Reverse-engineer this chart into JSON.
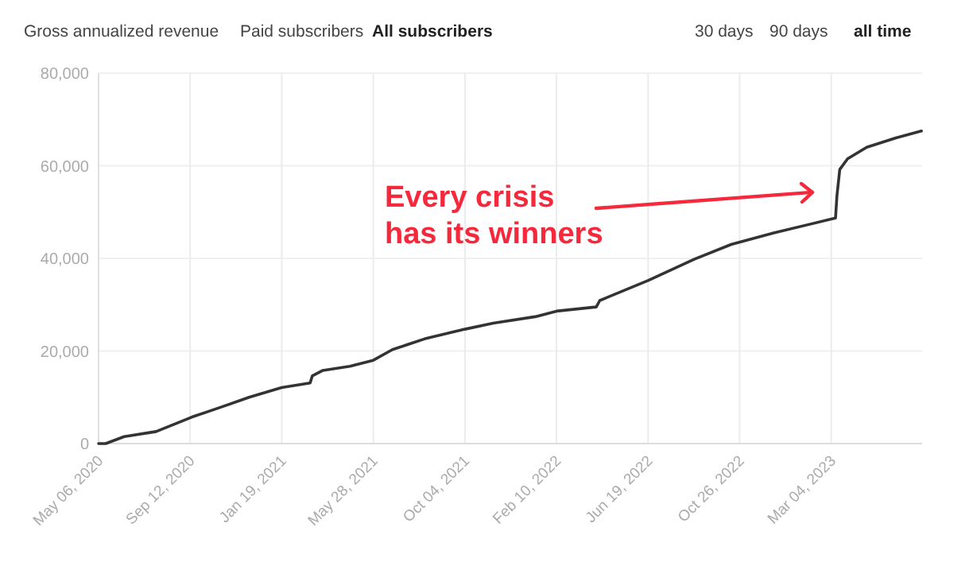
{
  "chart_data": {
    "type": "line",
    "annotations": [
      "Every crisis\nhas its winners",
      "Gross annualized revenue",
      "Paid subscribers",
      "All subscribers",
      "30 days",
      "90 days",
      "all time"
    ],
    "x": [
      "2020-05-06",
      "2020-05-16",
      "2020-06-11",
      "2020-07-26",
      "2020-09-14",
      "2020-10-28",
      "2020-12-04",
      "2021-01-19",
      "2021-02-28",
      "2021-03-03",
      "2021-03-18",
      "2021-04-25",
      "2021-05-28",
      "2021-06-24",
      "2021-08-08",
      "2021-10-04",
      "2021-11-13",
      "2022-01-11",
      "2022-02-10",
      "2022-04-07",
      "2022-04-12",
      "2022-06-19",
      "2022-08-23",
      "2022-10-14",
      "2022-12-13",
      "2023-03-10",
      "2023-03-12",
      "2023-03-16",
      "2023-03-27",
      "2023-04-23",
      "2023-06-03",
      "2023-07-09"
    ],
    "series": [
      {
        "color": "#333333",
        "values": [
          0,
          0,
          1500,
          2600,
          5700,
          8000,
          10000,
          12100,
          13100,
          14600,
          15800,
          16700,
          18000,
          20300,
          22600,
          24700,
          26000,
          27400,
          28600,
          29500,
          30900,
          35200,
          39800,
          43000,
          45500,
          48700,
          53500,
          59200,
          61500,
          64000,
          66000,
          67500
        ]
      }
    ],
    "xlim": [
      "2020-05-06",
      "2023-07-10"
    ],
    "xticks": [
      {
        "value": "2020-05-06",
        "label": "May 06, 2020"
      },
      {
        "value": "2020-09-12",
        "label": "Sep 12, 2020"
      },
      {
        "value": "2021-01-19",
        "label": "Jan 19, 2021"
      },
      {
        "value": "2021-05-28",
        "label": "May 28, 2021"
      },
      {
        "value": "2021-10-04",
        "label": "Oct 04, 2021"
      },
      {
        "value": "2022-02-10",
        "label": "Feb 10, 2022"
      },
      {
        "value": "2022-06-19",
        "label": "Jun 19, 2022"
      },
      {
        "value": "2022-10-26",
        "label": "Oct 26, 2022"
      },
      {
        "value": "2023-03-04",
        "label": "Mar 04, 2023"
      }
    ],
    "ylim": [
      0,
      80000
    ],
    "yticks": [
      {
        "value": 0,
        "label": "0"
      },
      {
        "value": 20000,
        "label": "20,000"
      },
      {
        "value": 40000,
        "label": "40,000"
      },
      {
        "value": 60000,
        "label": "60,000"
      },
      {
        "value": 80000,
        "label": "80,000"
      }
    ],
    "grid": true,
    "marker": "none",
    "line_style": "solid"
  }
}
